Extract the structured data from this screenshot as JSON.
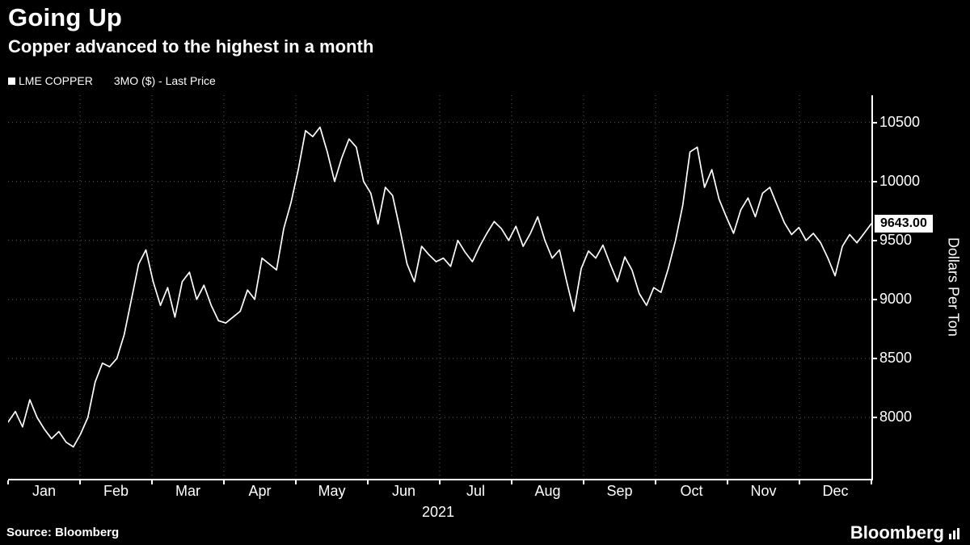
{
  "header": {
    "title": "Going Up",
    "subtitle": "Copper advanced to the highest in a month"
  },
  "legend": {
    "series_name": "LME COPPER",
    "series_detail": "3MO ($) - Last Price",
    "marker_color": "#ffffff"
  },
  "chart_data": {
    "type": "line",
    "title": "Going Up",
    "subtitle": "Copper advanced to the highest in a month",
    "series": [
      {
        "name": "LME COPPER 3MO ($) - Last Price",
        "color": "#ffffff",
        "values": [
          7960,
          8050,
          7920,
          8150,
          8000,
          7900,
          7820,
          7880,
          7790,
          7750,
          7860,
          8000,
          8300,
          8460,
          8430,
          8500,
          8700,
          9000,
          9300,
          9420,
          9150,
          8950,
          9100,
          8850,
          9150,
          9230,
          9000,
          9120,
          8950,
          8820,
          8800,
          8850,
          8900,
          9080,
          9000,
          9350,
          9300,
          9250,
          9600,
          9820,
          10100,
          10430,
          10380,
          10460,
          10250,
          10000,
          10200,
          10360,
          10290,
          10000,
          9900,
          9640,
          9950,
          9880,
          9600,
          9300,
          9150,
          9450,
          9380,
          9320,
          9350,
          9280,
          9500,
          9400,
          9320,
          9450,
          9560,
          9660,
          9600,
          9500,
          9620,
          9450,
          9560,
          9700,
          9500,
          9350,
          9420,
          9150,
          8900,
          9260,
          9410,
          9350,
          9460,
          9300,
          9150,
          9360,
          9250,
          9050,
          8950,
          9100,
          9060,
          9260,
          9500,
          9800,
          10250,
          10290,
          9950,
          10100,
          9850,
          9700,
          9560,
          9760,
          9860,
          9700,
          9900,
          9950,
          9800,
          9650,
          9550,
          9610,
          9500,
          9560,
          9480,
          9350,
          9200,
          9450,
          9550,
          9480,
          9560,
          9643
        ]
      }
    ],
    "categories": [
      "Jan",
      "Feb",
      "Mar",
      "Apr",
      "May",
      "Jun",
      "Jul",
      "Aug",
      "Sep",
      "Oct",
      "Nov",
      "Dec"
    ],
    "points_per_month": 10,
    "x_year_label": "2021",
    "ylabel": "Dollars Per Ton",
    "yticks": [
      8000,
      8500,
      9000,
      9500,
      10000,
      10500
    ],
    "ylim": [
      7480,
      10730
    ],
    "grid": "dotted",
    "grid_color": "#5f5f5f",
    "legend_position": "top-left",
    "last_price_label": "9643.00",
    "last_price_value": 9643
  },
  "footer": {
    "source": "Source: Bloomberg",
    "logo": "Bloomberg"
  }
}
